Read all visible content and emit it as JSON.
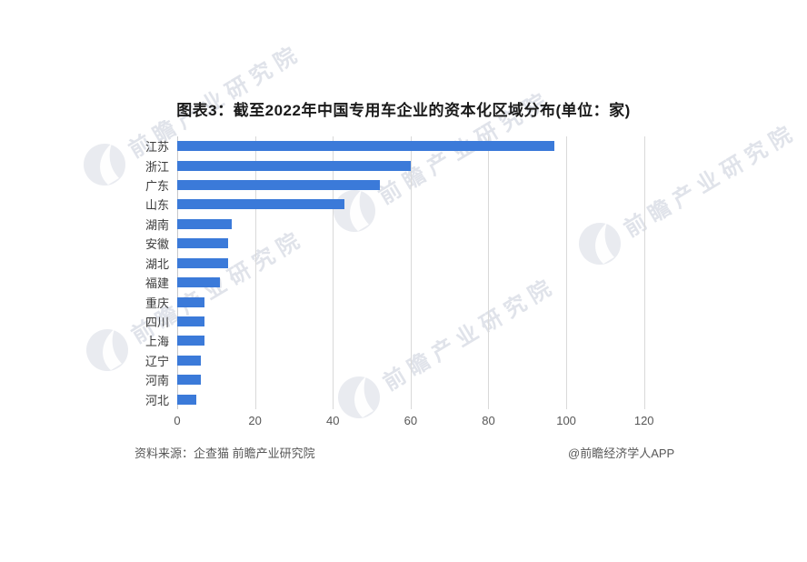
{
  "title": "图表3：截至2022年中国专用车企业的资本化区域分布(单位：家)",
  "footer": {
    "source": "资料来源：企查猫 前瞻产业研究院",
    "credit": "@前瞻经济学人APP"
  },
  "watermark": {
    "text": "前瞻产业研究院",
    "color": "#b6bdcc"
  },
  "chart_data": {
    "type": "bar",
    "orientation": "horizontal",
    "title": "图表3：截至2022年中国专用车企业的资本化区域分布(单位：家)",
    "unit": "家",
    "categories": [
      "江苏",
      "浙江",
      "广东",
      "山东",
      "湖南",
      "安徽",
      "湖北",
      "福建",
      "重庆",
      "四川",
      "上海",
      "辽宁",
      "河南",
      "河北"
    ],
    "values": [
      97,
      60,
      52,
      43,
      14,
      13,
      13,
      11,
      7,
      7,
      7,
      6,
      6,
      5
    ],
    "xlabel": "",
    "ylabel": "",
    "xlim": [
      0,
      120
    ],
    "xticks": [
      0,
      20,
      40,
      60,
      80,
      100,
      120
    ],
    "grid": true,
    "legend": "none",
    "bar_color": "#3b7ad9",
    "gridline_color": "#d9d9d9"
  }
}
